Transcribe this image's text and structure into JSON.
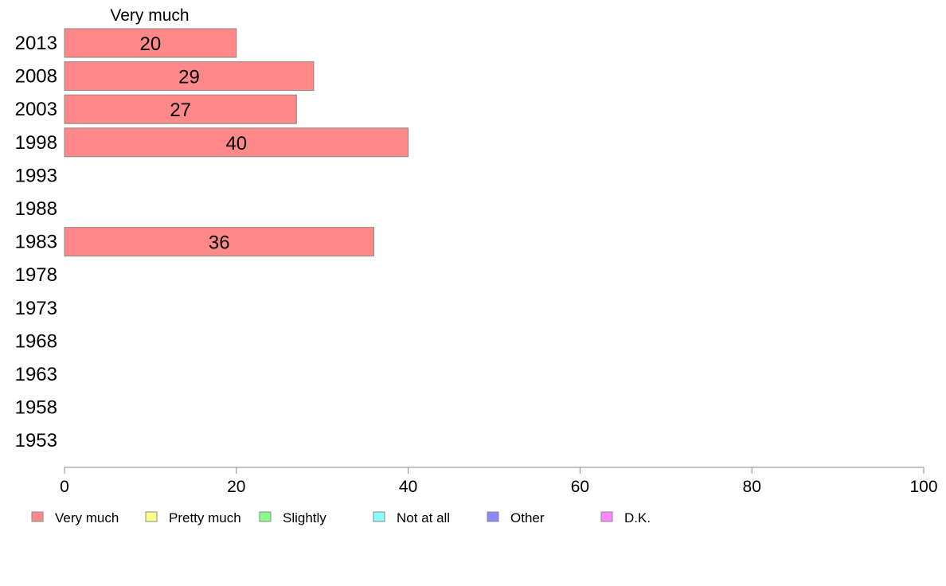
{
  "chart_data": {
    "type": "bar",
    "orientation": "horizontal",
    "stacked": true,
    "title": "",
    "column_header": "Very much",
    "categories": [
      "2013",
      "2008",
      "2003",
      "1998",
      "1993",
      "1988",
      "1983",
      "1978",
      "1973",
      "1968",
      "1963",
      "1958",
      "1953"
    ],
    "series": [
      {
        "name": "Very much",
        "color": "#ff8888",
        "values": [
          20,
          29,
          27,
          40,
          null,
          null,
          36,
          null,
          null,
          null,
          null,
          null,
          null
        ]
      },
      {
        "name": "Pretty much",
        "color": "#ffff88",
        "values": [
          null,
          null,
          null,
          null,
          null,
          null,
          null,
          null,
          null,
          null,
          null,
          null,
          null
        ]
      },
      {
        "name": "Slightly",
        "color": "#88ff88",
        "values": [
          null,
          null,
          null,
          null,
          null,
          null,
          null,
          null,
          null,
          null,
          null,
          null,
          null
        ]
      },
      {
        "name": "Not at all",
        "color": "#88ffff",
        "values": [
          null,
          null,
          null,
          null,
          null,
          null,
          null,
          null,
          null,
          null,
          null,
          null,
          null
        ]
      },
      {
        "name": "Other",
        "color": "#8888ff",
        "values": [
          null,
          null,
          null,
          null,
          null,
          null,
          null,
          null,
          null,
          null,
          null,
          null,
          null
        ]
      },
      {
        "name": "D.K.",
        "color": "#ff88ff",
        "values": [
          null,
          null,
          null,
          null,
          null,
          null,
          null,
          null,
          null,
          null,
          null,
          null,
          null
        ]
      }
    ],
    "xlim": [
      0,
      100
    ],
    "xticks": [
      0,
      20,
      40,
      60,
      80,
      100
    ],
    "xtick_labels": [
      "0",
      "20",
      "40",
      "60",
      "80",
      "100"
    ],
    "grid": false,
    "legend_position": "bottom"
  }
}
